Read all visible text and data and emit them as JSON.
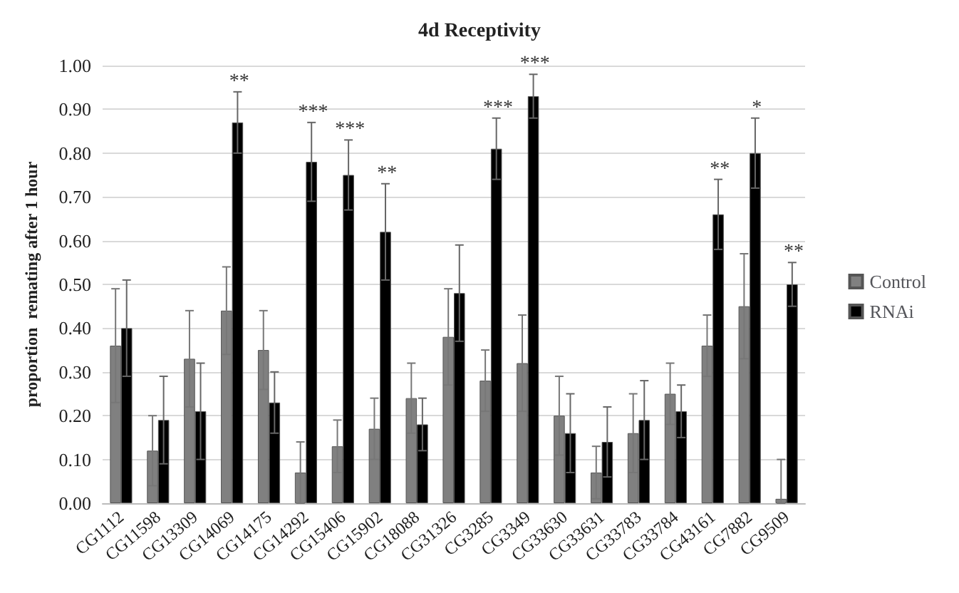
{
  "chart_data": {
    "type": "bar",
    "title": "4d Receptivity",
    "ylabel": "proportion  remating after 1 hour",
    "categories": [
      "CG1112",
      "CG11598",
      "CG13309",
      "CG14069",
      "CG14175",
      "CG14292",
      "CG15406",
      "CG15902",
      "CG18088",
      "CG31326",
      "CG3285",
      "CG3349",
      "CG33630",
      "CG33631",
      "CG33783",
      "CG33784",
      "CG43161",
      "CG7882",
      "CG9509"
    ],
    "series": [
      {
        "name": "Control",
        "color": "#808080",
        "values": [
          0.36,
          0.12,
          0.33,
          0.44,
          0.35,
          0.07,
          0.13,
          0.17,
          0.24,
          0.38,
          0.28,
          0.32,
          0.2,
          0.07,
          0.16,
          0.25,
          0.36,
          0.45,
          0.01
        ],
        "errors": [
          0.13,
          0.08,
          0.11,
          0.1,
          0.09,
          0.07,
          0.06,
          0.07,
          0.08,
          0.11,
          0.07,
          0.11,
          0.09,
          0.06,
          0.09,
          0.07,
          0.07,
          0.12,
          [
            0,
            0.1
          ]
        ]
      },
      {
        "name": "RNAi",
        "color": "#000000",
        "values": [
          0.4,
          0.19,
          0.21,
          0.87,
          0.23,
          0.78,
          0.75,
          0.62,
          0.18,
          0.48,
          0.81,
          0.93,
          0.16,
          0.14,
          0.19,
          0.21,
          0.66,
          0.8,
          0.5
        ],
        "errors": [
          0.11,
          0.1,
          0.11,
          0.07,
          0.07,
          0.09,
          0.08,
          0.11,
          0.06,
          0.11,
          0.07,
          0.05,
          0.09,
          0.08,
          0.09,
          0.06,
          0.08,
          0.08,
          0.05
        ]
      }
    ],
    "ylim": [
      0,
      1
    ],
    "yticks": [
      {
        "value": 0,
        "label": "0.00"
      },
      {
        "value": 0.1,
        "label": "0.10"
      },
      {
        "value": 0.2,
        "label": "0.20"
      },
      {
        "value": 0.3,
        "label": "0.30"
      },
      {
        "value": 0.4,
        "label": "0.40"
      },
      {
        "value": 0.5,
        "label": "0.50"
      },
      {
        "value": 0.6,
        "label": "0.60"
      },
      {
        "value": 0.7,
        "label": "0.70"
      },
      {
        "value": 0.8,
        "label": "0.80"
      },
      {
        "value": 0.9,
        "label": "0.90"
      },
      {
        "value": 1,
        "label": "1.00"
      }
    ],
    "grid": "y",
    "legend": "right",
    "annotations": [
      {
        "text": "**",
        "x": "CG14069",
        "y": 0.87
      },
      {
        "text": "***",
        "x": "CG14292",
        "y": 0.78
      },
      {
        "text": "***",
        "x": "CG15406",
        "y": 0.75
      },
      {
        "text": "**",
        "x": "CG15902",
        "y": 0.62
      },
      {
        "text": "***",
        "x": "CG3285",
        "y": 0.81
      },
      {
        "text": "***",
        "x": "CG3349",
        "y": 0.93
      },
      {
        "text": "**",
        "x": "CG43161",
        "y": 0.66
      },
      {
        "text": "*",
        "x": "CG7882",
        "y": 0.8
      },
      {
        "text": "**",
        "x": "CG9509",
        "y": 0.5
      }
    ]
  }
}
